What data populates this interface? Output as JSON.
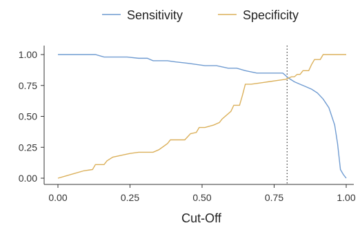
{
  "chart_data": {
    "type": "line",
    "title": "",
    "xlabel": "Cut-Off",
    "ylabel": "",
    "xlim": [
      0,
      1
    ],
    "ylim": [
      0,
      1
    ],
    "xticks": [
      0,
      0.25,
      0.5,
      0.75,
      1
    ],
    "xtick_labels": [
      "0.00",
      "0.25",
      "0.50",
      "0.75",
      "1.00"
    ],
    "yticks": [
      0,
      0.25,
      0.5,
      0.75,
      1
    ],
    "ytick_labels": [
      "0.00",
      "0.25",
      "0.50",
      "0.75",
      "1.00"
    ],
    "grid": false,
    "legend_position": "top",
    "vline": 0.795,
    "series": [
      {
        "name": "Sensitivity",
        "color": "#6f9bd1",
        "points": [
          [
            0.0,
            1.0
          ],
          [
            0.07,
            1.0
          ],
          [
            0.13,
            1.0
          ],
          [
            0.16,
            0.98
          ],
          [
            0.24,
            0.98
          ],
          [
            0.28,
            0.97
          ],
          [
            0.31,
            0.97
          ],
          [
            0.33,
            0.95
          ],
          [
            0.38,
            0.95
          ],
          [
            0.41,
            0.94
          ],
          [
            0.45,
            0.93
          ],
          [
            0.48,
            0.92
          ],
          [
            0.51,
            0.91
          ],
          [
            0.55,
            0.91
          ],
          [
            0.59,
            0.89
          ],
          [
            0.62,
            0.89
          ],
          [
            0.65,
            0.87
          ],
          [
            0.69,
            0.85
          ],
          [
            0.72,
            0.85
          ],
          [
            0.75,
            0.85
          ],
          [
            0.78,
            0.85
          ],
          [
            0.8,
            0.81
          ],
          [
            0.82,
            0.78
          ],
          [
            0.84,
            0.76
          ],
          [
            0.86,
            0.74
          ],
          [
            0.88,
            0.72
          ],
          [
            0.9,
            0.69
          ],
          [
            0.92,
            0.64
          ],
          [
            0.94,
            0.57
          ],
          [
            0.95,
            0.5
          ],
          [
            0.96,
            0.43
          ],
          [
            0.97,
            0.28
          ],
          [
            0.98,
            0.07
          ],
          [
            0.99,
            0.03
          ],
          [
            1.0,
            0.0
          ]
        ]
      },
      {
        "name": "Specificity",
        "color": "#dbb05a",
        "points": [
          [
            0.0,
            0.0
          ],
          [
            0.03,
            0.02
          ],
          [
            0.06,
            0.04
          ],
          [
            0.09,
            0.06
          ],
          [
            0.12,
            0.07
          ],
          [
            0.13,
            0.11
          ],
          [
            0.16,
            0.11
          ],
          [
            0.17,
            0.14
          ],
          [
            0.19,
            0.17
          ],
          [
            0.23,
            0.19
          ],
          [
            0.25,
            0.2
          ],
          [
            0.28,
            0.21
          ],
          [
            0.33,
            0.21
          ],
          [
            0.35,
            0.23
          ],
          [
            0.38,
            0.28
          ],
          [
            0.39,
            0.31
          ],
          [
            0.44,
            0.31
          ],
          [
            0.46,
            0.36
          ],
          [
            0.48,
            0.37
          ],
          [
            0.49,
            0.41
          ],
          [
            0.51,
            0.41
          ],
          [
            0.54,
            0.43
          ],
          [
            0.56,
            0.45
          ],
          [
            0.57,
            0.48
          ],
          [
            0.6,
            0.54
          ],
          [
            0.61,
            0.59
          ],
          [
            0.63,
            0.59
          ],
          [
            0.64,
            0.67
          ],
          [
            0.65,
            0.76
          ],
          [
            0.67,
            0.76
          ],
          [
            0.7,
            0.77
          ],
          [
            0.73,
            0.78
          ],
          [
            0.76,
            0.79
          ],
          [
            0.79,
            0.8
          ],
          [
            0.81,
            0.82
          ],
          [
            0.82,
            0.82
          ],
          [
            0.83,
            0.84
          ],
          [
            0.84,
            0.84
          ],
          [
            0.85,
            0.87
          ],
          [
            0.87,
            0.87
          ],
          [
            0.88,
            0.92
          ],
          [
            0.89,
            0.96
          ],
          [
            0.91,
            0.96
          ],
          [
            0.92,
            1.0
          ],
          [
            1.0,
            1.0
          ]
        ]
      }
    ]
  }
}
